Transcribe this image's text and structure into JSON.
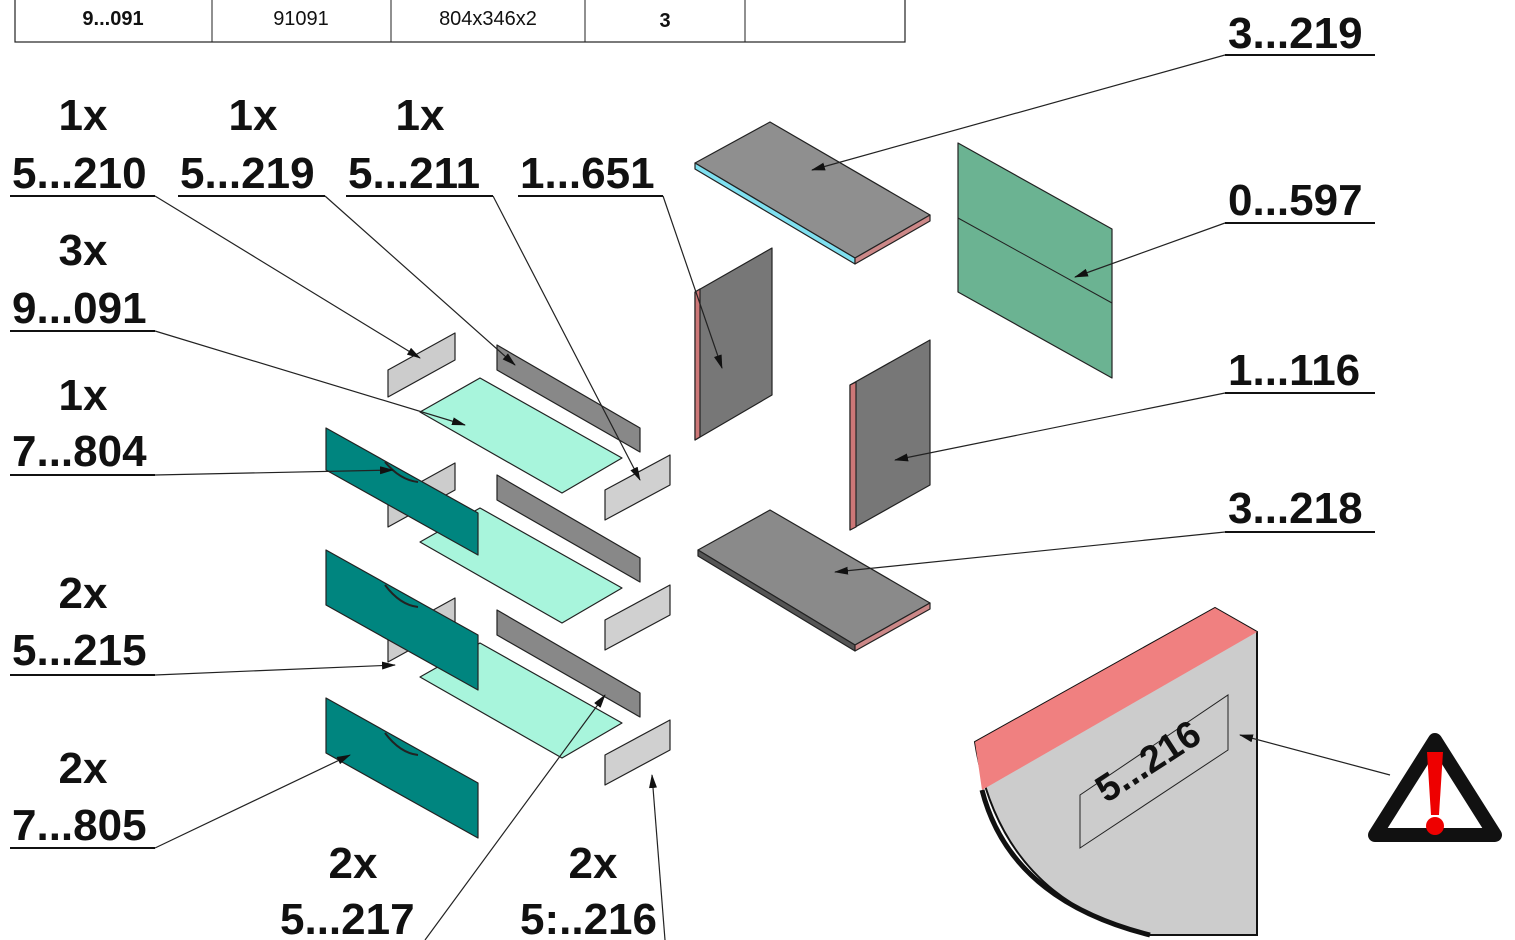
{
  "table": {
    "rows": [
      [
        "9...091",
        "91091",
        "804x346x2",
        "3"
      ]
    ]
  },
  "callouts": [
    {
      "qty": "1x",
      "code": "5...210"
    },
    {
      "qty": "1x",
      "code": "5...219"
    },
    {
      "qty": "1x",
      "code": "5...211"
    },
    {
      "code": "1...651"
    },
    {
      "qty": "3x",
      "code": "9...091"
    },
    {
      "qty": "1x",
      "code": "7...804"
    },
    {
      "qty": "2x",
      "code": "5...215"
    },
    {
      "qty": "2x",
      "code": "7...805"
    },
    {
      "qty": "2x",
      "code": "5...217"
    },
    {
      "qty": "2x",
      "code": "5:..216"
    },
    {
      "code": "3...219"
    },
    {
      "code": "0...597"
    },
    {
      "code": "1...116"
    },
    {
      "code": "3...218"
    }
  ],
  "detail": {
    "label": "5...216"
  }
}
